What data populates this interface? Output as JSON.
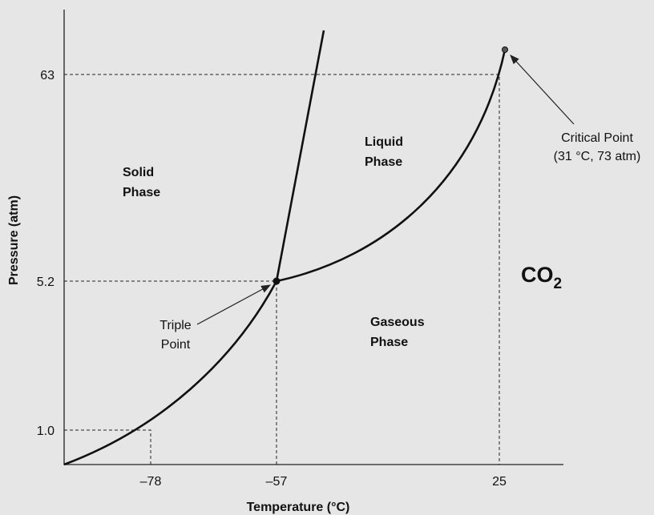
{
  "axes": {
    "y_label": "Pressure (atm)",
    "x_label": "Temperature (°C)",
    "y_ticks": [
      "63",
      "5.2",
      "1.0"
    ],
    "x_ticks": [
      "–78",
      "–57",
      "25"
    ]
  },
  "regions": {
    "solid": [
      "Solid",
      "Phase"
    ],
    "liquid": [
      "Liquid",
      "Phase"
    ],
    "gas": [
      "Gaseous",
      "Phase"
    ]
  },
  "triple_point": [
    "Triple",
    "Point"
  ],
  "critical_point": [
    "Critical Point",
    "(31 °C, 73 atm)"
  ],
  "substance": {
    "text": "CO",
    "subscript": "2"
  }
}
